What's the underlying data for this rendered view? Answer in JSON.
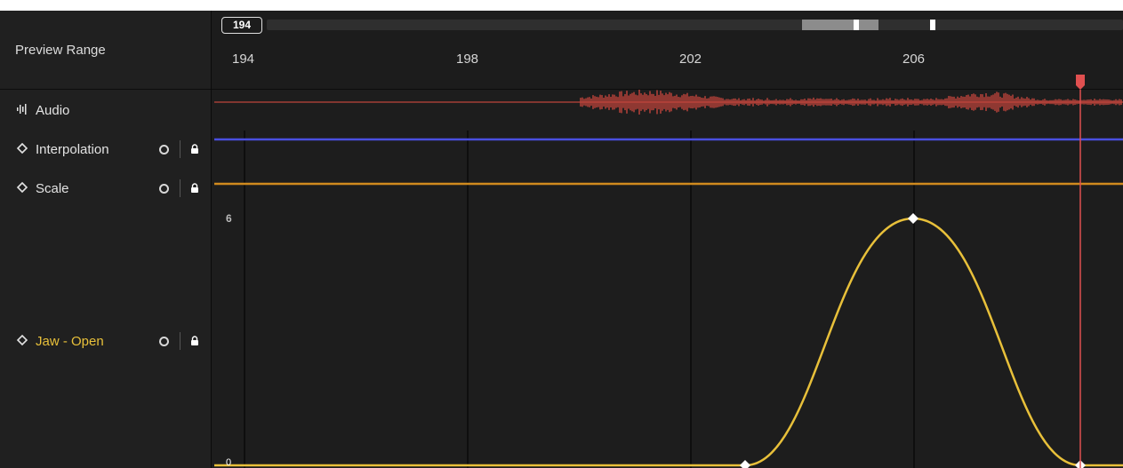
{
  "left_panel": {
    "header": "Preview Range",
    "tracks": [
      {
        "label": "Audio",
        "icon": "audio-waveform-icon"
      },
      {
        "label": "Interpolation",
        "icon": "diamond-icon"
      },
      {
        "label": "Scale",
        "icon": "diamond-icon"
      },
      {
        "label": "Jaw - Open",
        "icon": "diamond-icon"
      }
    ]
  },
  "timeline": {
    "current_frame": "194",
    "ticks": [
      "194",
      "198",
      "202",
      "206"
    ],
    "value_max_label": "6",
    "value_min_label": "0"
  },
  "colors": {
    "background": "#1d1d1d",
    "audio_waveform": "#c0453c",
    "interpolation_line": "#4a4fe0",
    "scale_line": "#d08a1e",
    "jaw_curve": "#e8c03a",
    "playhead": "#e05050"
  }
}
